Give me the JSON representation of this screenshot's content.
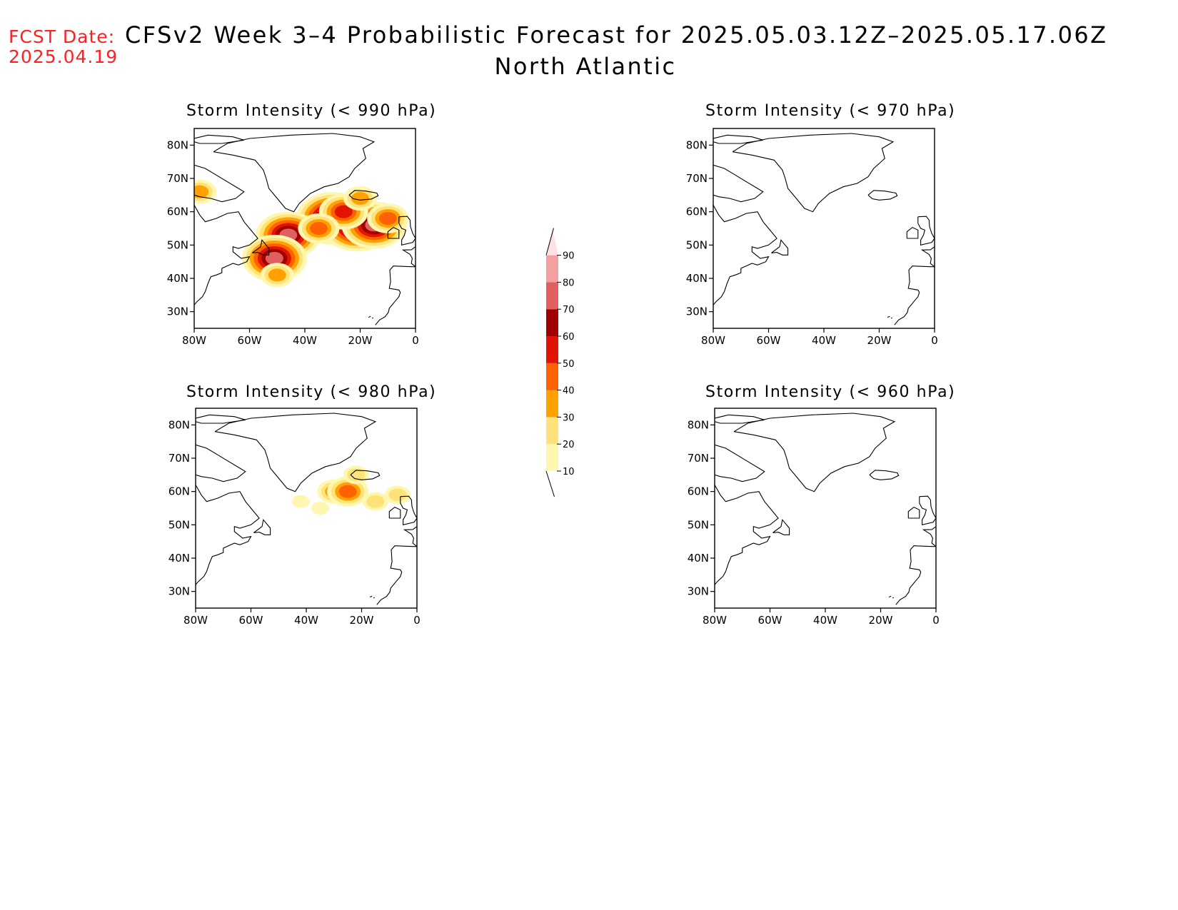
{
  "header": {
    "fcst_label": "FCST Date:",
    "fcst_date": "2025.04.19",
    "title": "CFSv2 Week 3–4 Probabilistic Forecast for 2025.05.03.12Z–2025.05.17.06Z",
    "region": "North Atlantic"
  },
  "axes": {
    "lat_labels": [
      "80N",
      "70N",
      "60N",
      "50N",
      "40N",
      "30N"
    ],
    "lon_labels": [
      "80W",
      "60W",
      "40W",
      "20W",
      "0"
    ],
    "lat_range": [
      25,
      85
    ],
    "lon_range": [
      -80,
      0
    ]
  },
  "panels": [
    {
      "id": "p990",
      "title": "Storm Intensity (< 990 hPa)"
    },
    {
      "id": "p970",
      "title": "Storm Intensity (< 970 hPa)"
    },
    {
      "id": "p980",
      "title": "Storm Intensity (< 980 hPa)"
    },
    {
      "id": "p960",
      "title": "Storm Intensity (< 960 hPa)"
    }
  ],
  "colorbar": {
    "levels": [
      "10",
      "20",
      "30",
      "40",
      "50",
      "60",
      "70",
      "80",
      "90"
    ],
    "colors": [
      "#fff7b0",
      "#ffe27a",
      "#ffa200",
      "#ff6000",
      "#e01400",
      "#a00000",
      "#e06060",
      "#f4a0a0",
      "#fde3e3"
    ]
  },
  "chart_data": {
    "type": "heatmap",
    "units": "percent",
    "panels": [
      {
        "id": "p990",
        "blobs": [
          {
            "lon": -30,
            "lat": 58,
            "value": 80
          },
          {
            "lon": -21,
            "lat": 56,
            "value": 80
          },
          {
            "lon": -15,
            "lat": 56,
            "value": 70
          },
          {
            "lon": -46,
            "lat": 53,
            "value": 70
          },
          {
            "lon": -51,
            "lat": 46,
            "value": 70
          },
          {
            "lon": -26,
            "lat": 60,
            "value": 50
          },
          {
            "lon": -10,
            "lat": 58,
            "value": 40
          },
          {
            "lon": -20,
            "lat": 64,
            "value": 30
          },
          {
            "lon": -35,
            "lat": 55,
            "value": 40
          },
          {
            "lon": -50,
            "lat": 41,
            "value": 30
          },
          {
            "lon": -78,
            "lat": 66,
            "value": 30
          }
        ]
      },
      {
        "id": "p970",
        "blobs": []
      },
      {
        "id": "p980",
        "blobs": [
          {
            "lon": -30,
            "lat": 60,
            "value": 30
          },
          {
            "lon": -25,
            "lat": 60,
            "value": 40
          },
          {
            "lon": -15,
            "lat": 57,
            "value": 20
          },
          {
            "lon": -7,
            "lat": 59,
            "value": 20
          },
          {
            "lon": -42,
            "lat": 57,
            "value": 10
          },
          {
            "lon": -35,
            "lat": 55,
            "value": 10
          },
          {
            "lon": -22,
            "lat": 65,
            "value": 20
          }
        ]
      },
      {
        "id": "p960",
        "blobs": []
      }
    ]
  }
}
